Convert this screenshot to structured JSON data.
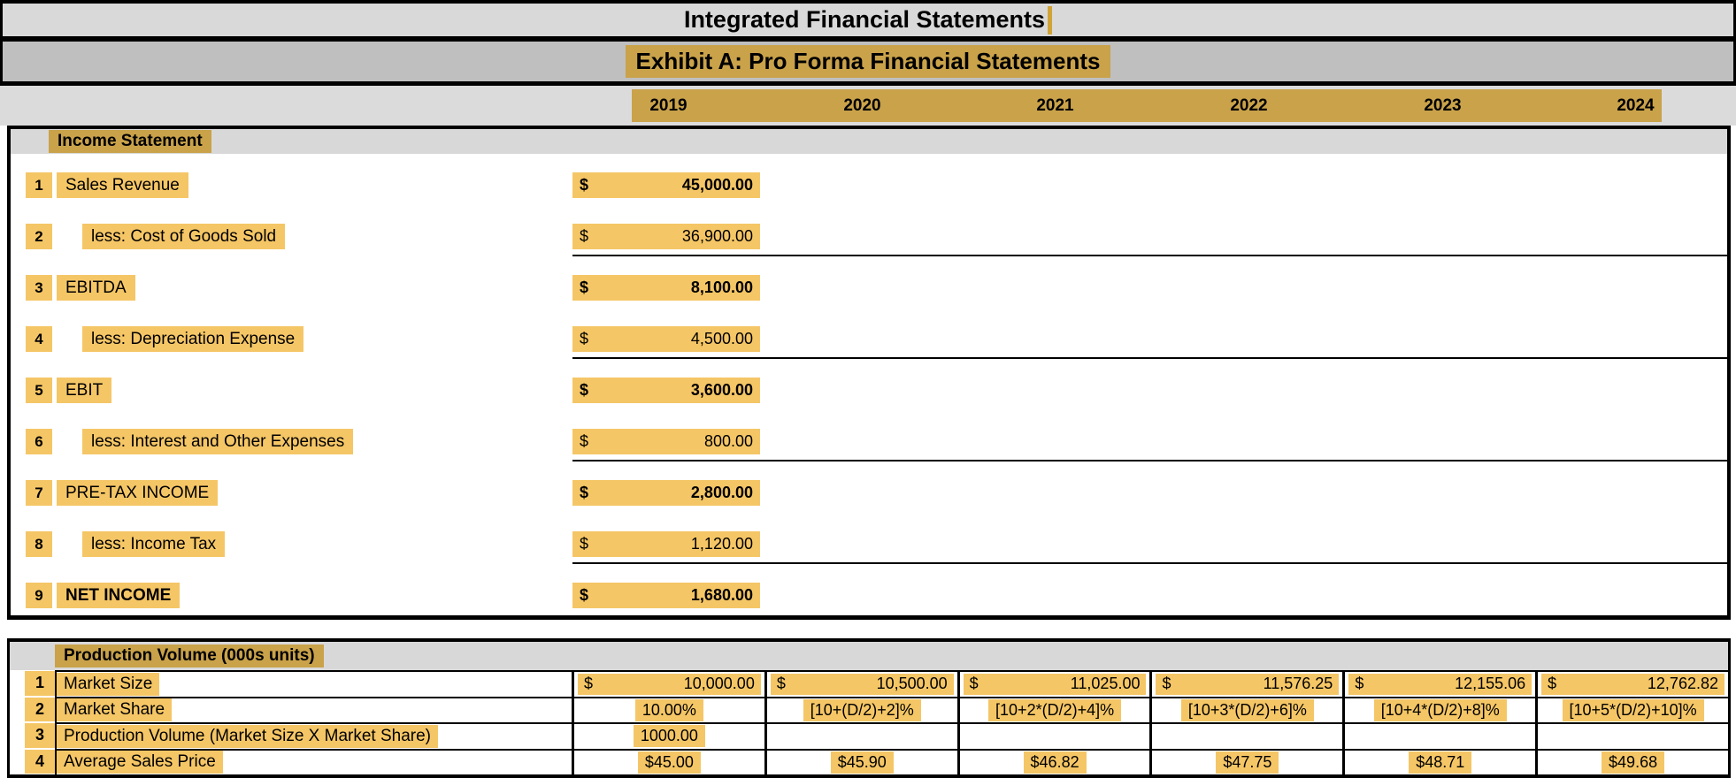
{
  "colors": {
    "highlight_dark": "#C9A24A",
    "highlight_light": "#F5C666",
    "title_gray": "#D9D9D9",
    "exhibit_gray": "#BFBFBF",
    "yearrow_gray": "#DBDBDB",
    "header_gray": "#D8D8D8",
    "border_black": "#000000"
  },
  "title": "Integrated Financial Statements",
  "exhibit_title": "Exhibit A: Pro Forma Financial Statements",
  "years": [
    "2019",
    "2020",
    "2021",
    "2022",
    "2023",
    "2024"
  ],
  "income_statement": {
    "section_title": "Income Statement",
    "rows": [
      {
        "num": "1",
        "label": "Sales Revenue",
        "currency": "$",
        "value": "45,000.00"
      },
      {
        "num": "2",
        "label": "less: Cost of Goods Sold",
        "currency": "$",
        "value": "36,900.00"
      },
      {
        "num": "3",
        "label": "EBITDA",
        "currency": "$",
        "value": "8,100.00"
      },
      {
        "num": "4",
        "label": "less: Depreciation Expense",
        "currency": "$",
        "value": "4,500.00"
      },
      {
        "num": "5",
        "label": "EBIT",
        "currency": "$",
        "value": "3,600.00"
      },
      {
        "num": "6",
        "label": "less: Interest and Other Expenses",
        "currency": "$",
        "value": "800.00"
      },
      {
        "num": "7",
        "label": "PRE-TAX INCOME",
        "currency": "$",
        "value": "2,800.00"
      },
      {
        "num": "8",
        "label": "less: Income Tax",
        "currency": "$",
        "value": "1,120.00"
      },
      {
        "num": "9",
        "label": "NET INCOME",
        "currency": "$",
        "value": "1,680.00"
      }
    ]
  },
  "production": {
    "section_title": "Production Volume (000s units)",
    "rows": [
      {
        "num": "1",
        "label": "Market Size",
        "cells": [
          {
            "currency": "$",
            "value": "10,000.00"
          },
          {
            "currency": "$",
            "value": "10,500.00"
          },
          {
            "currency": "$",
            "value": "11,025.00"
          },
          {
            "currency": "$",
            "value": "11,576.25"
          },
          {
            "currency": "$",
            "value": "12,155.06"
          },
          {
            "currency": "$",
            "value": "12,762.82"
          }
        ]
      },
      {
        "num": "2",
        "label": "Market Share",
        "cells": [
          "10.00%",
          "[10+(D/2)+2]%",
          "[10+2*(D/2)+4]%",
          "[10+3*(D/2)+6]%",
          "[10+4*(D/2)+8]%",
          "[10+5*(D/2)+10]%"
        ]
      },
      {
        "num": "3",
        "label": "Production Volume (Market Size X Market Share)",
        "cells": [
          "1000.00",
          "",
          "",
          "",
          "",
          ""
        ]
      },
      {
        "num": "4",
        "label": "Average Sales Price",
        "cells": [
          "$45.00",
          "$45.90",
          "$46.82",
          "$47.75",
          "$48.71",
          "$49.68"
        ]
      }
    ]
  }
}
